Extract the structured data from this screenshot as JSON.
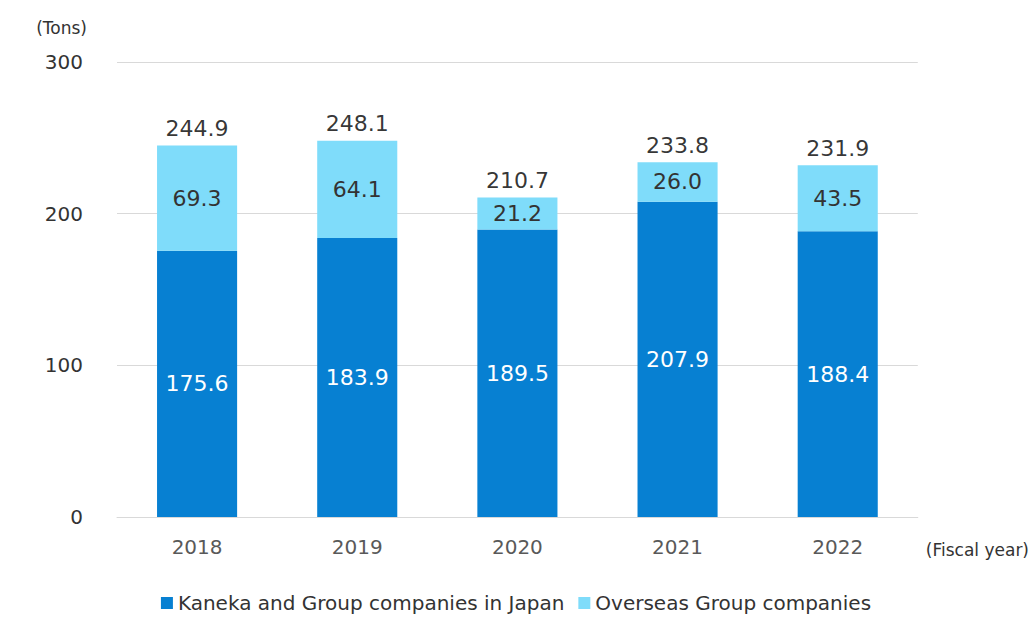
{
  "chart_data": {
    "type": "bar",
    "stacked": true,
    "data_labels": true,
    "grid": true,
    "y_label": "(Tons)",
    "x_label": "(Fiscal year)",
    "categories": [
      "2018",
      "2019",
      "2020",
      "2021",
      "2022"
    ],
    "series": [
      {
        "name": "Kaneka and Group companies in Japan",
        "color": "#0780d2",
        "values": [
          175.6,
          183.9,
          189.5,
          207.9,
          188.4
        ]
      },
      {
        "name": "Overseas Group companies",
        "color": "#7fdcfa",
        "values": [
          69.3,
          64.1,
          21.2,
          26.0,
          43.5
        ],
        "value_labels": [
          "69.3",
          "64.1",
          "21.2",
          "26.0",
          "43.5"
        ]
      }
    ],
    "totals": [
      244.9,
      248.1,
      210.7,
      233.8,
      231.9
    ],
    "ylim": [
      0,
      300
    ],
    "yticks": [
      0,
      100,
      200,
      300
    ],
    "legend": "bottom"
  }
}
